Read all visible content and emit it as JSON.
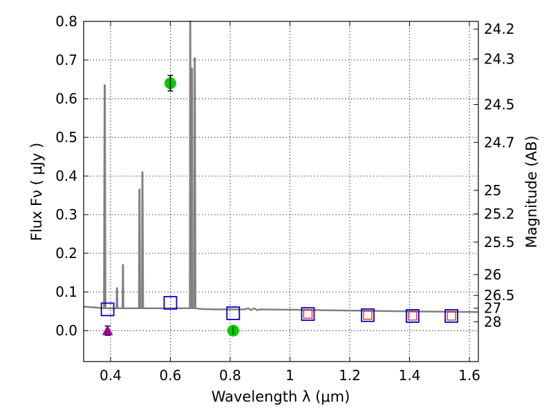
{
  "chart_data": {
    "type": "scatter",
    "xlabel": "Wavelength  λ (μm)",
    "ylabel": "Flux  Fν  ( μJy )",
    "y2label": "Magnitude (AB)",
    "xlim": [
      0.31,
      1.63
    ],
    "ylim": [
      -0.08,
      0.8
    ],
    "grid": true,
    "x_ticks": [
      0.4,
      0.6,
      0.8,
      1.0,
      1.2,
      1.4,
      1.6
    ],
    "x_tick_labels": [
      "0.4",
      "0.6",
      "0.8",
      "1",
      "1.2",
      "1.4",
      "1.6"
    ],
    "y_ticks": [
      0.0,
      0.1,
      0.2,
      0.3,
      0.4,
      0.5,
      0.6,
      0.7,
      0.8
    ],
    "y_tick_labels": [
      "0.0",
      "0.1",
      "0.2",
      "0.3",
      "0.4",
      "0.5",
      "0.6",
      "0.7",
      "0.8"
    ],
    "magnitude_ticks": [
      {
        "label": "24.2",
        "flux": 0.78
      },
      {
        "label": "24.3",
        "flux": 0.703
      },
      {
        "label": "24.5",
        "flux": 0.585
      },
      {
        "label": "24.7",
        "flux": 0.487
      },
      {
        "label": "25",
        "flux": 0.363
      },
      {
        "label": "25.2",
        "flux": 0.302
      },
      {
        "label": "25.5",
        "flux": 0.229
      },
      {
        "label": "26",
        "flux": 0.145
      },
      {
        "label": "26.5",
        "flux": 0.091
      },
      {
        "label": "27",
        "flux": 0.058
      },
      {
        "label": "28",
        "flux": 0.023
      }
    ],
    "series": [
      {
        "name": "template spectrum",
        "kind": "line",
        "color": "#808080",
        "x": [
          0.31,
          0.35,
          0.378,
          0.38,
          0.381,
          0.383,
          0.42,
          0.421,
          0.422,
          0.423,
          0.44,
          0.441,
          0.442,
          0.443,
          0.495,
          0.496,
          0.497,
          0.499,
          0.5,
          0.505,
          0.506,
          0.507,
          0.509,
          0.51,
          0.6,
          0.665,
          0.666,
          0.667,
          0.669,
          0.67,
          0.672,
          0.673,
          0.674,
          0.676,
          0.677,
          0.68,
          0.681,
          0.682,
          0.684,
          0.685,
          0.7,
          0.75,
          0.85,
          0.86,
          0.87,
          0.88,
          0.89,
          0.9,
          1.0,
          1.2,
          1.4,
          1.63
        ],
        "y": [
          0.062,
          0.06,
          0.058,
          0.635,
          0.635,
          0.058,
          0.058,
          0.11,
          0.11,
          0.058,
          0.058,
          0.17,
          0.17,
          0.058,
          0.058,
          0.365,
          0.365,
          0.058,
          0.058,
          0.058,
          0.41,
          0.41,
          0.058,
          0.058,
          0.058,
          0.058,
          0.8,
          0.8,
          0.058,
          0.058,
          0.678,
          0.678,
          0.058,
          0.058,
          0.058,
          0.058,
          0.705,
          0.705,
          0.058,
          0.058,
          0.056,
          0.055,
          0.055,
          0.058,
          0.053,
          0.058,
          0.053,
          0.055,
          0.054,
          0.052,
          0.05,
          0.048
        ]
      },
      {
        "name": "model photometry",
        "kind": "open-square",
        "color": "#0000cc",
        "x": [
          0.39,
          0.6,
          0.81,
          1.06,
          1.26,
          1.41,
          1.54
        ],
        "y": [
          0.055,
          0.072,
          0.045,
          0.043,
          0.04,
          0.038,
          0.038
        ]
      },
      {
        "name": "synthetic photometry",
        "kind": "small-open-square",
        "color": "#ff0000",
        "x": [
          1.06,
          1.26,
          1.41,
          1.54
        ],
        "y": [
          0.043,
          0.04,
          0.038,
          0.038
        ]
      },
      {
        "name": "detections",
        "kind": "circle",
        "color": "#00cc00",
        "x": [
          0.6,
          0.81
        ],
        "y": [
          0.64,
          0.0
        ],
        "yerr": [
          0.02,
          0.01
        ]
      },
      {
        "name": "upper limit",
        "kind": "triangle",
        "color": "#990099",
        "x": [
          0.39
        ],
        "y": [
          0.0
        ],
        "yerr": [
          0.012
        ]
      }
    ]
  }
}
